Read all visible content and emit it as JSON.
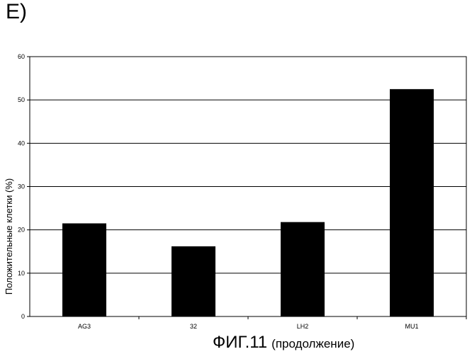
{
  "panel_label": "E)",
  "figure_caption": {
    "main": "ФИГ.11",
    "sub": "(продолжение)"
  },
  "chart_data": {
    "type": "bar",
    "categories": [
      "AG3",
      "32",
      "LH2",
      "MU1"
    ],
    "values": [
      21.5,
      16.2,
      21.8,
      52.5
    ],
    "ylabel": "Положительные клетки (%)",
    "xlabel": "",
    "ylim": [
      0,
      60
    ],
    "yticks": [
      0,
      10,
      20,
      30,
      40,
      50,
      60
    ],
    "grid": true,
    "bar_color": "#000000"
  }
}
